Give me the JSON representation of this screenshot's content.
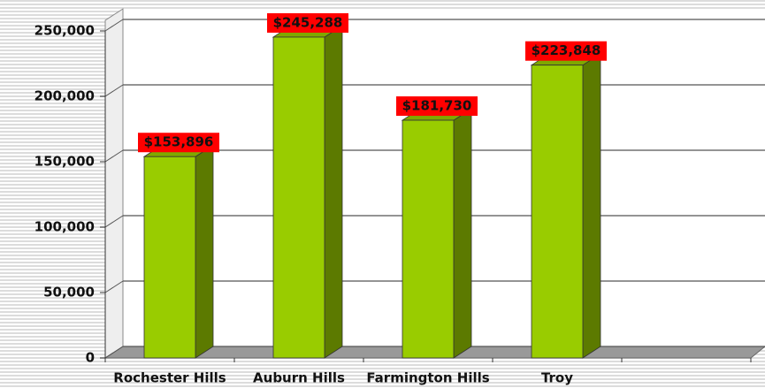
{
  "chart_data": {
    "type": "bar",
    "categories": [
      "Rochester Hills",
      "Auburn Hills",
      "Farmington Hills",
      "Troy"
    ],
    "values": [
      153896,
      245288,
      181730,
      223848
    ],
    "value_labels": [
      "$153,896",
      "$245,288",
      "$181,730",
      "$223,848"
    ],
    "color": "#99cc00",
    "ylim": [
      0,
      250000
    ],
    "yticks": [
      0,
      {
        "value": 50000,
        "label": "50,000"
      },
      {
        "value": 100000,
        "label": "100,000"
      },
      {
        "value": 150000,
        "label": "150,000"
      },
      {
        "value": 200000,
        "label": "200,000"
      },
      {
        "value": 250000,
        "label": "250,000"
      }
    ],
    "grid": true
  }
}
